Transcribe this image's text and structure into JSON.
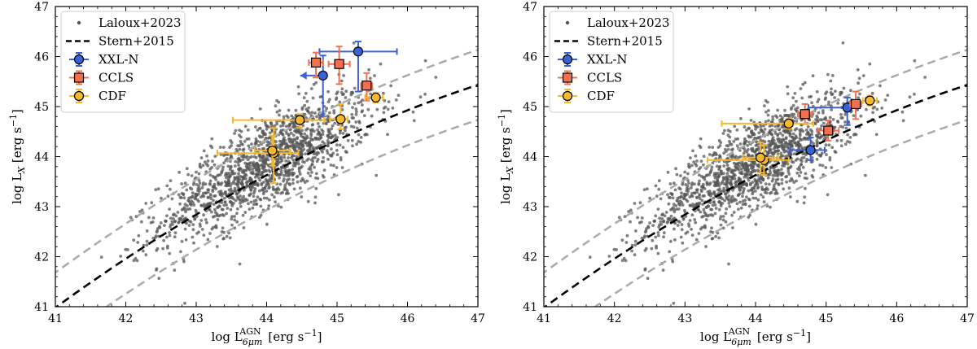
{
  "chart_data": [
    {
      "type": "scatter",
      "title": "",
      "xlabel": {
        "main": "log L",
        "sub": "6μm",
        "sup": "AGN",
        "unit": "[erg s",
        "unit_sup": "−1",
        "unit_end": "]"
      },
      "ylabel": {
        "main": "log L",
        "sub": "X",
        "unit": "[erg s",
        "unit_sup": "−1",
        "unit_end": "]"
      },
      "xlim": [
        41,
        47
      ],
      "ylim": [
        41,
        47
      ],
      "xticks": [
        "41",
        "42",
        "43",
        "44",
        "45",
        "46",
        "47"
      ],
      "yticks": [
        "41",
        "42",
        "43",
        "44",
        "45",
        "46",
        "47"
      ],
      "legend": {
        "placement": "top-left",
        "entries": [
          "Laloux+2023",
          "Stern+2015",
          "XXL-N",
          "CCLS",
          "CDF"
        ]
      },
      "relation": {
        "name": "Stern+2015",
        "color": "#000000",
        "band_color": "#aaaaaa",
        "band_offset_dex": 0.7
      },
      "background_sample": {
        "name": "Laloux+2023",
        "color": "#555555",
        "n": 1500,
        "center": [
          44.0,
          43.85
        ],
        "spread": [
          0.75,
          0.45
        ]
      },
      "series": [
        {
          "name": "XXL-N",
          "color": "#3a62d6",
          "marker": "circle",
          "points": [
            {
              "x": 45.3,
              "y": 46.1,
              "xerr": [
                0.55,
                0.55
              ],
              "yerr": [
                0.8,
                0.2
              ]
            },
            {
              "x": 44.8,
              "y": 45.62,
              "xerr": [
                0.0,
                0.0
              ],
              "yerr": [
                0.82,
                0.4
              ],
              "xupper": true
            }
          ]
        },
        {
          "name": "CCLS",
          "color": "#f07050",
          "marker": "square",
          "points": [
            {
              "x": 44.7,
              "y": 45.88,
              "xerr": [
                0.1,
                0.1
              ],
              "yerr": [
                0.3,
                0.2
              ]
            },
            {
              "x": 45.03,
              "y": 45.85,
              "xerr": [
                0.15,
                0.15
              ],
              "yerr": [
                0.4,
                0.35
              ]
            },
            {
              "x": 45.42,
              "y": 45.42,
              "xerr": [
                0.08,
                0.08
              ],
              "yerr": [
                0.3,
                0.25
              ]
            }
          ]
        },
        {
          "name": "CDF",
          "color": "#f5b82e",
          "marker": "circle",
          "points": [
            {
              "x": 44.47,
              "y": 44.73,
              "xerr": [
                0.95,
                0.35
              ],
              "yerr": [
                0.15,
                0.12
              ]
            },
            {
              "x": 45.05,
              "y": 44.75,
              "xerr": [
                0.15,
                0.1
              ],
              "yerr": [
                0.2,
                0.3
              ]
            },
            {
              "x": 45.55,
              "y": 45.18,
              "xerr": [
                0.15,
                0.1
              ],
              "yerr": [
                0.1,
                0.1
              ]
            },
            {
              "x": 44.1,
              "y": 44.07,
              "xerr": [
                0.8,
                0.35
              ],
              "yerr": [
                0.6,
                0.5
              ]
            },
            {
              "x": 44.08,
              "y": 44.12,
              "xerr": [
                0.25,
                0.25
              ],
              "yerr": [
                0.3,
                0.3
              ]
            }
          ]
        }
      ]
    },
    {
      "type": "scatter",
      "title": "",
      "xlabel": {
        "main": "log L",
        "sub": "6μm",
        "sup": "AGN",
        "unit": "[erg s",
        "unit_sup": "−1",
        "unit_end": "]"
      },
      "ylabel": {
        "main": "log L",
        "sub": "X",
        "unit": "[erg s",
        "unit_sup": "−1",
        "unit_end": "]"
      },
      "xlim": [
        41,
        47
      ],
      "ylim": [
        41,
        47
      ],
      "xticks": [
        "41",
        "42",
        "43",
        "44",
        "45",
        "46",
        "47"
      ],
      "yticks": [
        "41",
        "42",
        "43",
        "44",
        "45",
        "46",
        "47"
      ],
      "legend": {
        "placement": "top-left",
        "entries": [
          "Laloux+2023",
          "Stern+2015",
          "XXL-N",
          "CCLS",
          "CDF"
        ]
      },
      "relation": {
        "name": "Stern+2015",
        "color": "#000000",
        "band_color": "#aaaaaa",
        "band_offset_dex": 0.7
      },
      "background_sample": {
        "name": "Laloux+2023",
        "color": "#555555",
        "n": 1500,
        "center": [
          44.0,
          43.85
        ],
        "spread": [
          0.75,
          0.45
        ]
      },
      "series": [
        {
          "name": "XXL-N",
          "color": "#3a62d6",
          "marker": "circle",
          "points": [
            {
              "x": 45.3,
              "y": 44.98,
              "xerr": [
                0.55,
                0.15
              ],
              "yerr": [
                0.35,
                0.2
              ]
            },
            {
              "x": 44.78,
              "y": 44.13,
              "xerr": [
                0.3,
                0.2
              ],
              "yerr": [
                0.2,
                0.25
              ]
            }
          ]
        },
        {
          "name": "CCLS",
          "color": "#f07050",
          "marker": "square",
          "points": [
            {
              "x": 44.7,
              "y": 44.85,
              "xerr": [
                0.1,
                0.1
              ],
              "yerr": [
                0.2,
                0.2
              ]
            },
            {
              "x": 45.03,
              "y": 44.52,
              "xerr": [
                0.15,
                0.15
              ],
              "yerr": [
                0.2,
                0.2
              ]
            },
            {
              "x": 45.42,
              "y": 45.05,
              "xerr": [
                0.08,
                0.08
              ],
              "yerr": [
                0.3,
                0.25
              ]
            }
          ]
        },
        {
          "name": "CDF",
          "color": "#f5b82e",
          "marker": "circle",
          "points": [
            {
              "x": 44.47,
              "y": 44.66,
              "xerr": [
                0.95,
                0.35
              ],
              "yerr": [
                0.1,
                0.1
              ]
            },
            {
              "x": 45.62,
              "y": 45.12,
              "xerr": [
                0.1,
                0.1
              ],
              "yerr": [
                0.1,
                0.1
              ]
            },
            {
              "x": 44.12,
              "y": 43.93,
              "xerr": [
                0.8,
                0.35
              ],
              "yerr": [
                0.3,
                0.3
              ]
            },
            {
              "x": 44.07,
              "y": 43.98,
              "xerr": [
                0.25,
                0.25
              ],
              "yerr": [
                0.3,
                0.3
              ]
            }
          ]
        }
      ]
    }
  ]
}
